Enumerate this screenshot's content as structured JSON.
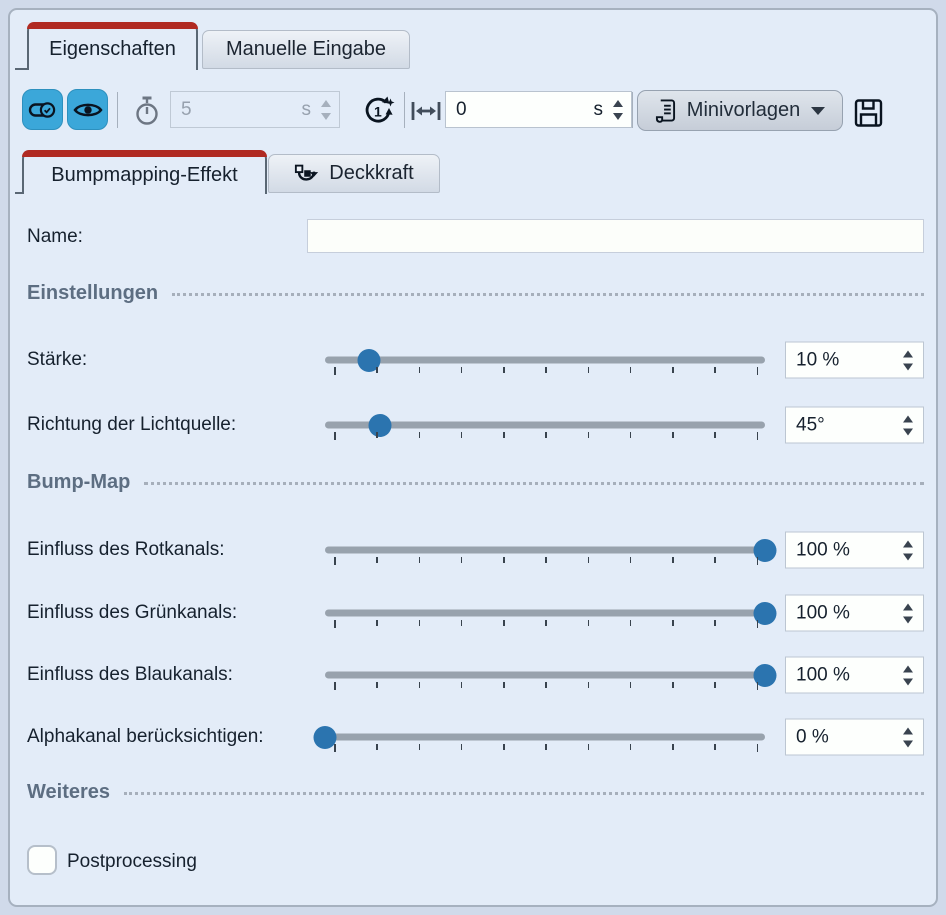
{
  "colors": {
    "accent_red": "#b02a22",
    "toolbar_button_blue": "#3ba7d9",
    "slider_handle_blue": "#2b74af",
    "panel_bg": "#e3ecf8"
  },
  "tabs_main": [
    {
      "label": "Eigenschaften",
      "active": true
    },
    {
      "label": "Manuelle Eingabe",
      "active": false
    }
  ],
  "toolbar": {
    "keyframe_button_icon": "toggle-check-icon",
    "visibility_button_icon": "eye-icon",
    "duration": {
      "icon": "stopwatch-icon",
      "value": "5",
      "unit": "s",
      "disabled": true
    },
    "reset_duration_icon": "reset-duration-icon",
    "offset": {
      "icon": "width-icon",
      "value": "0",
      "unit": "s",
      "disabled": false
    },
    "minitemplates": {
      "label": "Minivorlagen",
      "icon": "scroll-icon",
      "dropdown_icon": "chevron-down-icon"
    },
    "save_icon": "floppy-disk-icon"
  },
  "tabs_effect": [
    {
      "label": "Bumpmapping-Effekt",
      "active": true
    },
    {
      "label": "Deckkraft",
      "active": false,
      "icon": "animation-icon"
    }
  ],
  "form": {
    "name": {
      "label": "Name:",
      "value": "",
      "placeholder": ""
    },
    "sections": [
      {
        "title": "Einstellungen"
      },
      {
        "title": "Bump-Map"
      },
      {
        "title": "Weiteres"
      }
    ],
    "sliders": [
      {
        "label": "Stärke:",
        "value": "10 %",
        "percent": 10
      },
      {
        "label": "Richtung der Lichtquelle:",
        "value": "45°",
        "percent": 12.5
      },
      {
        "label": "Einfluss des Rotkanals:",
        "value": "100 %",
        "percent": 100
      },
      {
        "label": "Einfluss des Grünkanals:",
        "value": "100 %",
        "percent": 100
      },
      {
        "label": "Einfluss des Blaukanals:",
        "value": "100 %",
        "percent": 100
      },
      {
        "label": "Alphakanal berücksichtigen:",
        "value": "0 %",
        "percent": 0
      }
    ],
    "postprocessing": {
      "label": "Postprocessing",
      "checked": false
    }
  }
}
